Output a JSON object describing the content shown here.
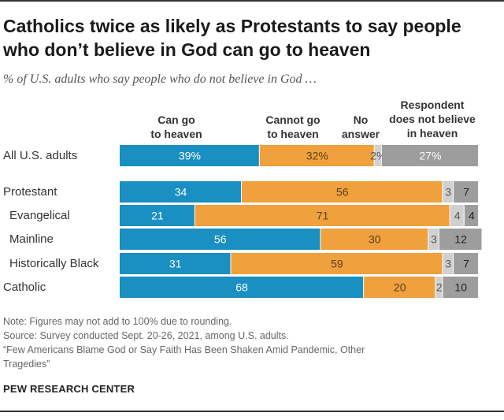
{
  "title_line1": "Catholics twice as likely as Protestants to say people",
  "title_line2": "who don’t believe in God can go to heaven",
  "subtitle": "% of U.S. adults who say people who do not believe in God …",
  "chart_data": {
    "type": "bar",
    "orientation": "horizontal",
    "stacked": true,
    "series": [
      {
        "name": "Can go to heaven",
        "color": "#1a8fc2"
      },
      {
        "name": "Cannot go to heaven",
        "color": "#f0a03c"
      },
      {
        "name": "No answer",
        "color": "#d0d0d0"
      },
      {
        "name": "Respondent does not believe in heaven",
        "color": "#9d9d9d"
      }
    ],
    "series_headers": [
      [
        "Can go",
        "to heaven"
      ],
      [
        "Cannot go",
        "to heaven"
      ],
      [
        "No",
        "answer"
      ],
      [
        "Respondent",
        "does not believe",
        "in heaven"
      ]
    ],
    "rows": [
      {
        "label": "All U.S. adults",
        "values": [
          39,
          32,
          2,
          27
        ],
        "labels": [
          "39%",
          "32%",
          "2%",
          "27%"
        ]
      },
      {
        "label": "Protestant",
        "values": [
          34,
          56,
          3,
          7
        ],
        "labels": [
          "34",
          "56",
          "3",
          "7"
        ]
      },
      {
        "label": "Evangelical",
        "values": [
          21,
          71,
          4,
          4
        ],
        "labels": [
          "21",
          "71",
          "4",
          "4"
        ]
      },
      {
        "label": "Mainline",
        "values": [
          56,
          30,
          3,
          12
        ],
        "labels": [
          "56",
          "30",
          "3",
          "12"
        ]
      },
      {
        "label": "Historically Black",
        "values": [
          31,
          59,
          3,
          7
        ],
        "labels": [
          "31",
          "59",
          "3",
          "7"
        ]
      },
      {
        "label": "Catholic",
        "values": [
          68,
          20,
          2,
          10
        ],
        "labels": [
          "68",
          "20",
          "2",
          "10"
        ]
      }
    ],
    "xlim": [
      0,
      100
    ]
  },
  "note": "Note: Figures may not add to 100% due to rounding.",
  "source": "Source: Survey conducted Sept. 20-26, 2021, among U.S. adults.",
  "report_line1": "“Few Americans Blame God or Say Faith Has Been Shaken Amid Pandemic, Other",
  "report_line2": "Tragedies”",
  "brand": "PEW RESEARCH CENTER"
}
